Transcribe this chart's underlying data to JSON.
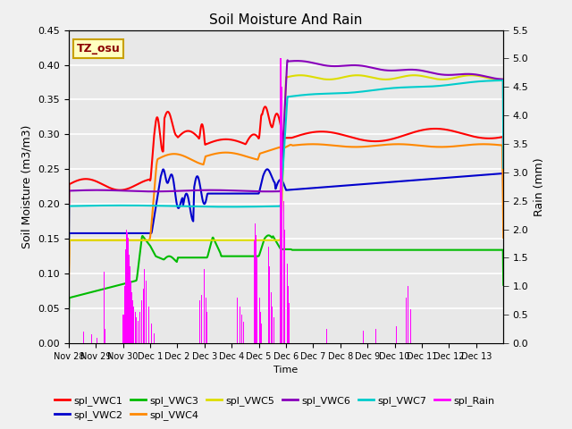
{
  "title": "Soil Moisture And Rain",
  "xlabel": "Time",
  "ylabel_left": "Soil Moisture (m3/m3)",
  "ylabel_right": "Rain (mm)",
  "annotation": "TZ_osu",
  "ylim_left": [
    0.0,
    0.45
  ],
  "ylim_right": [
    0.0,
    5.5
  ],
  "yticks_left": [
    0.0,
    0.05,
    0.1,
    0.15,
    0.2,
    0.25,
    0.3,
    0.35,
    0.4,
    0.45
  ],
  "yticks_right": [
    0.0,
    0.5,
    1.0,
    1.5,
    2.0,
    2.5,
    3.0,
    3.5,
    4.0,
    4.5,
    5.0,
    5.5
  ],
  "tick_labels": [
    "Nov 28",
    "Nov 29",
    "Nov 30",
    "Dec 1",
    "Dec 2",
    "Dec 3",
    "Dec 4",
    "Dec 5",
    "Dec 6",
    "Dec 7",
    "Dec 8",
    "Dec 9",
    "Dec 10",
    "Dec 11",
    "Dec 12",
    "Dec 13"
  ],
  "colors": {
    "VWC1": "#ff0000",
    "VWC2": "#0000cc",
    "VWC3": "#00bb00",
    "VWC4": "#ff8800",
    "VWC5": "#dddd00",
    "VWC6": "#8800bb",
    "VWC7": "#00cccc",
    "Rain": "#ff00ff"
  },
  "bg_color": "#e8e8e8",
  "grid_color": "#ffffff",
  "fig_bg": "#f0f0f0",
  "num_days": 16
}
